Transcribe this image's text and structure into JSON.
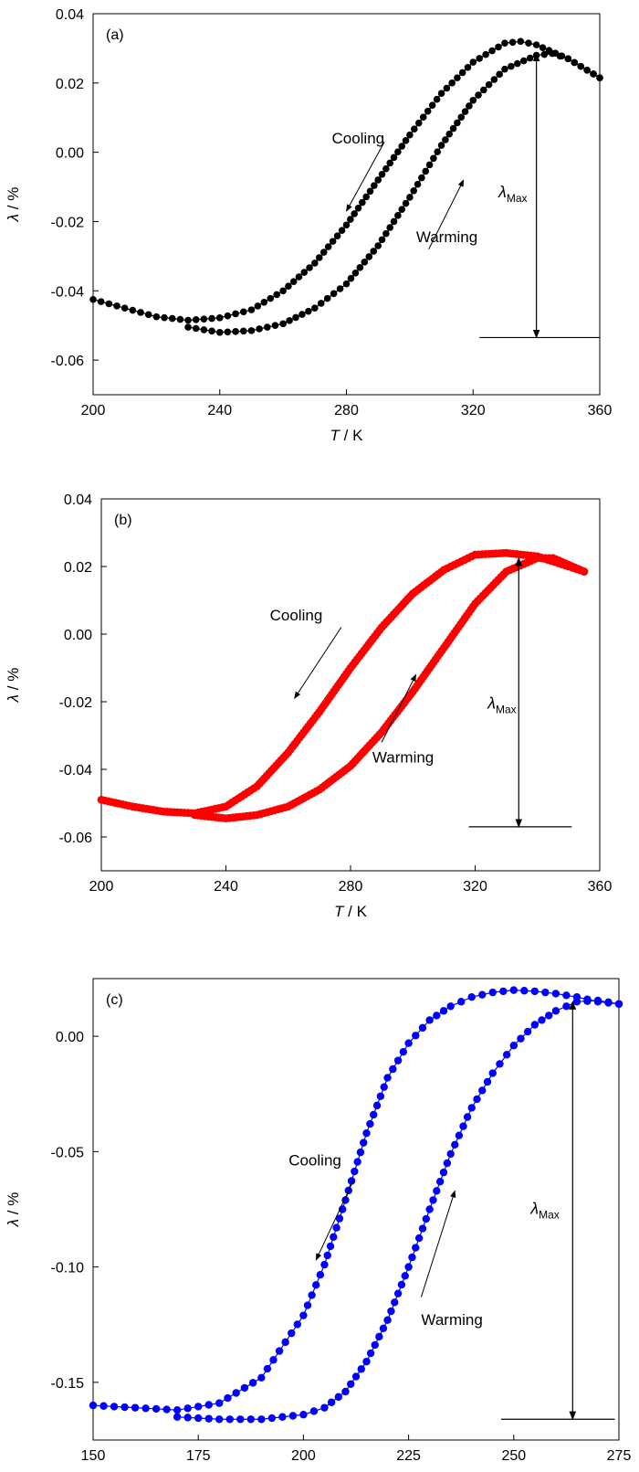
{
  "chart_data": [
    {
      "type": "scatter",
      "panel_label": "(a)",
      "color": "#000000",
      "xlabel_var": "T",
      "xlabel_unit": " / K",
      "ylabel_var": "λ",
      "ylabel_unit": " / %",
      "xlim": [
        200,
        360
      ],
      "ylim": [
        -0.07,
        0.04
      ],
      "x_ticks": [
        "200",
        "240",
        "280",
        "320",
        "360"
      ],
      "x_tick_values": [
        200,
        240,
        280,
        320,
        360
      ],
      "y_ticks": [
        "-0.06",
        "-0.04",
        "-0.02",
        "0.00",
        "0.02",
        "0.04"
      ],
      "y_tick_values": [
        -0.06,
        -0.04,
        -0.02,
        0.0,
        0.02,
        0.04
      ],
      "grid": false,
      "series": [
        {
          "x": [
            200,
            210,
            220,
            230,
            240,
            250,
            260,
            270,
            280,
            290,
            300,
            310,
            320,
            330,
            335,
            340,
            350,
            360
          ],
          "y": [
            -0.0425,
            -0.045,
            -0.0475,
            -0.0485,
            -0.0478,
            -0.0455,
            -0.04,
            -0.032,
            -0.021,
            -0.008,
            0.005,
            0.017,
            0.026,
            0.0315,
            0.032,
            0.031,
            0.027,
            0.0215
          ]
        },
        {
          "x": [
            230,
            240,
            250,
            260,
            270,
            280,
            290,
            300,
            310,
            320,
            330,
            340,
            345,
            350,
            360
          ],
          "y": [
            -0.0505,
            -0.052,
            -0.0515,
            -0.0495,
            -0.045,
            -0.038,
            -0.027,
            -0.013,
            0.002,
            0.015,
            0.024,
            0.028,
            0.0285,
            0.027,
            0.0215
          ]
        }
      ],
      "annotations": {
        "cooling": "Cooling",
        "warming": "Warming",
        "lambda_max": {
          "symbol": "λ",
          "subscript": "Max"
        },
        "lambda_max_x": 340,
        "lambda_max_top": 0.0285,
        "lambda_max_bottom": -0.0535,
        "cooling_arrow": {
          "from": [
            292,
            0.003
          ],
          "to": [
            280,
            -0.017
          ]
        },
        "warming_arrow": {
          "from": [
            306,
            -0.028
          ],
          "to": [
            317,
            -0.008
          ]
        },
        "cooling_text_at": [
          292,
          0.0025
        ],
        "warming_text_at": [
          302,
          -0.026
        ],
        "lambda_text_at": [
          328,
          -0.013
        ],
        "baseline": {
          "x_from": 322,
          "x_to": 360
        }
      }
    },
    {
      "type": "scatter",
      "panel_label": "(b)",
      "color": "#ff0000",
      "xlabel_var": "T",
      "xlabel_unit": " / K",
      "ylabel_var": "λ",
      "ylabel_unit": " / %",
      "xlim": [
        200,
        360
      ],
      "ylim": [
        -0.07,
        0.04
      ],
      "x_ticks": [
        "200",
        "240",
        "280",
        "320",
        "360"
      ],
      "x_tick_values": [
        200,
        240,
        280,
        320,
        360
      ],
      "y_ticks": [
        "-0.06",
        "-0.04",
        "-0.02",
        "0.00",
        "0.02",
        "0.04"
      ],
      "y_tick_values": [
        -0.06,
        -0.04,
        -0.02,
        0.0,
        0.02,
        0.04
      ],
      "grid": false,
      "series": [
        {
          "x": [
            200,
            210,
            220,
            230,
            240,
            250,
            260,
            270,
            280,
            290,
            300,
            310,
            320,
            330,
            340,
            350,
            355
          ],
          "y": [
            -0.049,
            -0.051,
            -0.0525,
            -0.053,
            -0.051,
            -0.045,
            -0.035,
            -0.023,
            -0.01,
            0.002,
            0.012,
            0.019,
            0.0235,
            0.024,
            0.023,
            0.02,
            0.0185
          ]
        },
        {
          "x": [
            230,
            240,
            250,
            260,
            270,
            280,
            290,
            300,
            310,
            320,
            330,
            340,
            345,
            350,
            355
          ],
          "y": [
            -0.0535,
            -0.0545,
            -0.0535,
            -0.051,
            -0.046,
            -0.039,
            -0.029,
            -0.017,
            -0.004,
            0.009,
            0.0185,
            0.0225,
            0.0225,
            0.0205,
            0.0185
          ]
        }
      ],
      "annotations": {
        "cooling": "Cooling",
        "warming": "Warming",
        "lambda_max": {
          "symbol": "λ",
          "subscript": "Max"
        },
        "lambda_max_x": 334,
        "lambda_max_top": 0.0225,
        "lambda_max_bottom": -0.057,
        "cooling_arrow": {
          "from": [
            277,
            0.002
          ],
          "to": [
            262,
            -0.019
          ]
        },
        "warming_arrow": {
          "from": [
            290,
            -0.032
          ],
          "to": [
            301,
            -0.012
          ]
        },
        "cooling_text_at": [
          271,
          0.004
        ],
        "warming_text_at": [
          287,
          -0.038
        ],
        "lambda_text_at": [
          324,
          -0.022
        ],
        "baseline": {
          "x_from": 318,
          "x_to": 351
        }
      }
    },
    {
      "type": "scatter",
      "panel_label": "(c)",
      "color": "#0000ff",
      "xlabel_var": "T",
      "xlabel_unit": " / K",
      "ylabel_var": "λ",
      "ylabel_unit": " / %",
      "xlim": [
        150,
        275
      ],
      "ylim": [
        -0.175,
        0.025
      ],
      "x_ticks": [
        "150",
        "175",
        "200",
        "225",
        "250",
        "275"
      ],
      "x_tick_values": [
        150,
        175,
        200,
        225,
        250,
        275
      ],
      "y_ticks": [
        "-0.15",
        "-0.10",
        "-0.05",
        "0.00"
      ],
      "y_tick_values": [
        -0.15,
        -0.1,
        -0.05,
        0.0
      ],
      "grid": false,
      "series": [
        {
          "x": [
            150,
            160,
            170,
            180,
            190,
            200,
            205,
            210,
            215,
            220,
            225,
            230,
            235,
            240,
            245,
            250,
            255,
            260,
            265,
            270,
            275
          ],
          "y": [
            -0.16,
            -0.161,
            -0.162,
            -0.159,
            -0.148,
            -0.121,
            -0.099,
            -0.071,
            -0.042,
            -0.018,
            -0.003,
            0.007,
            0.013,
            0.017,
            0.019,
            0.02,
            0.0195,
            0.0185,
            0.017,
            0.015,
            0.014
          ]
        },
        {
          "x": [
            170,
            180,
            190,
            200,
            205,
            210,
            215,
            220,
            225,
            230,
            235,
            240,
            245,
            250,
            255,
            260,
            265,
            270,
            275
          ],
          "y": [
            -0.165,
            -0.166,
            -0.166,
            -0.164,
            -0.161,
            -0.154,
            -0.141,
            -0.123,
            -0.1,
            -0.075,
            -0.051,
            -0.031,
            -0.016,
            -0.004,
            0.005,
            0.011,
            0.015,
            0.0155,
            0.014
          ]
        }
      ],
      "annotations": {
        "cooling": "Cooling",
        "warming": "Warming",
        "lambda_max": {
          "symbol": "λ",
          "subscript": "Max"
        },
        "lambda_max_x": 264,
        "lambda_max_top": 0.015,
        "lambda_max_bottom": -0.166,
        "cooling_arrow": {
          "from": [
            212,
            -0.062
          ],
          "to": [
            203,
            -0.097
          ]
        },
        "warming_arrow": {
          "from": [
            228,
            -0.113
          ],
          "to": [
            236,
            -0.067
          ]
        },
        "cooling_text_at": [
          209,
          -0.056
        ],
        "warming_text_at": [
          228,
          -0.125
        ],
        "lambda_text_at": [
          254,
          -0.077
        ],
        "baseline": {
          "x_from": 247,
          "x_to": 274
        }
      }
    }
  ]
}
